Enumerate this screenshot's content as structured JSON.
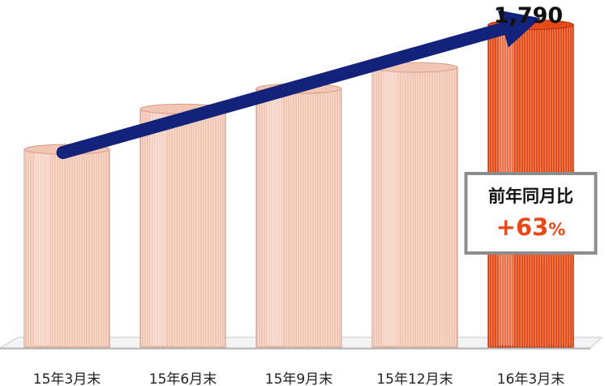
{
  "chart_data": {
    "type": "bar",
    "categories": [
      "15年3月末",
      "15年6月末",
      "15年9月末",
      "15年12月末",
      "16年3月末"
    ],
    "values": [
      1098,
      1322,
      1435,
      1553,
      1790
    ],
    "value_labels": [
      "",
      "",
      "",
      "",
      "1,790"
    ],
    "ylim": [
      0,
      1900
    ],
    "grid": false,
    "legend": "none",
    "highlight_index": 4,
    "annotation": {
      "title": "前年同月比",
      "value": "+63",
      "unit": "%"
    },
    "trend_arrow": true
  },
  "colors": {
    "bar": "#f2c6b4",
    "bar_edge": "#d99a84",
    "bar_highlight": "#e84a17",
    "bar_highlight_edge": "#a82d08",
    "arrow": "#13227a",
    "annotation_border": "#8c8c8c",
    "annotation_accent": "#e84a17",
    "floor": "#c8c8c8"
  }
}
